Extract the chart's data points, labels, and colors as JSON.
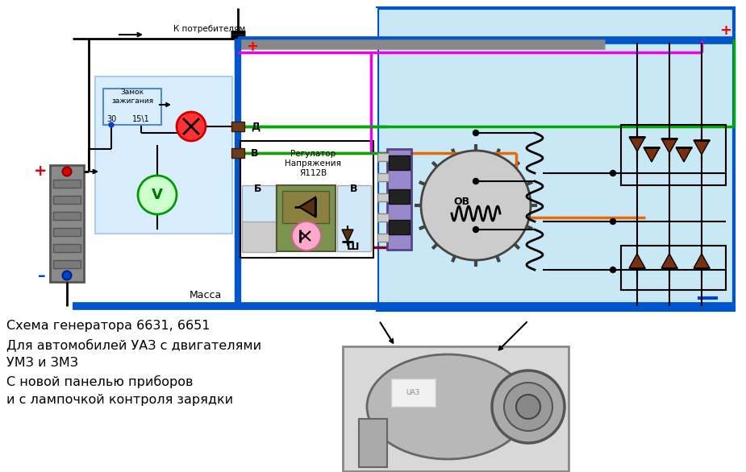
{
  "bg_color": "#ffffff",
  "diagram_bg": "#c8e8f5",
  "diagram_border": "#0055cc",
  "text_lines": [
    "Схема генератора 6631, 6651",
    "Для автомобилей УАЗ с двигателями",
    "УМЗ и ЗМЗ",
    "С новой панелью приборов",
    "и с лампочкой контроля зарядки"
  ],
  "consumers_label": "К потребителям",
  "massa_label": "Масса",
  "ignition_label": "Замок\nзажигания",
  "regulator_label": "Регулатор\nНапряжения\nЯ112В",
  "label_D": "Д",
  "label_B_low": "В",
  "label_Sh": "Ш",
  "label_Bb": "Б",
  "label_Bv": "В",
  "label_OV": "ОВ",
  "label_30": "30",
  "label_151": "15\\1",
  "label_plus": "+",
  "label_minus": "–"
}
